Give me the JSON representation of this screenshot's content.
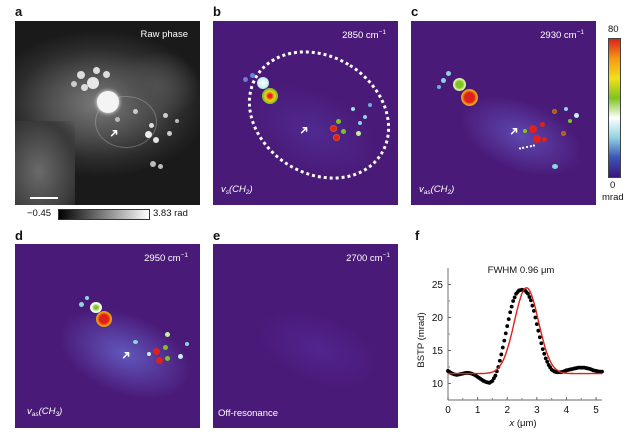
{
  "figure": {
    "panels": [
      {
        "id": "a",
        "label": "a",
        "corner_text": "Raw phase",
        "colorbar": {
          "min_label": "−0.45",
          "max_label": "3.83 rad"
        }
      },
      {
        "id": "b",
        "label": "b",
        "wavenumber": "2850 cm",
        "wavenumber_exp": "−1",
        "mode_prefix": "v",
        "mode_sub": "s",
        "mode_group": "(CH",
        "mode_group_sub": "2",
        "mode_close": ")"
      },
      {
        "id": "c",
        "label": "c",
        "wavenumber": "2930 cm",
        "wavenumber_exp": "−1",
        "mode_prefix": "v",
        "mode_sub": "as",
        "mode_group": "(CH",
        "mode_group_sub": "2",
        "mode_close": ")",
        "colorbar": {
          "max_label": "80",
          "min_label": "0",
          "unit_label": "mrad",
          "colors": [
            "#3a1480",
            "#3b56b8",
            "#8fd3e3",
            "#ffffff",
            "#7fc41f",
            "#f2e01a",
            "#f59a12",
            "#e0201a"
          ]
        }
      },
      {
        "id": "d",
        "label": "d",
        "wavenumber": "2950 cm",
        "wavenumber_exp": "−1",
        "mode_prefix": "v",
        "mode_sub": "as",
        "mode_group": "(CH",
        "mode_group_sub": "3",
        "mode_close": ")"
      },
      {
        "id": "e",
        "label": "e",
        "wavenumber": "2700 cm",
        "wavenumber_exp": "−1",
        "mode_text": "Off-resonance"
      },
      {
        "id": "f",
        "label": "f"
      }
    ],
    "colors": {
      "map_background": "#4a1a78",
      "fit_line": "#d8241c",
      "data_points": "#000000"
    }
  },
  "chart_data": {
    "type": "line",
    "title": "FWHM 0.96  μm",
    "xlabel": "x (μm)",
    "xlabel_var": "x",
    "xlabel_unit": " (μm)",
    "ylabel": "BSTP (mrad)",
    "xlim": [
      0,
      5.2
    ],
    "ylim": [
      7.5,
      27.5
    ],
    "xticks": [
      0,
      1,
      2,
      3,
      4,
      5
    ],
    "yticks": [
      10,
      15,
      20,
      25
    ],
    "grid": false,
    "legend": "none",
    "series": [
      {
        "name": "measured",
        "style": "dots",
        "color": "#000000",
        "x": [
          0.0,
          0.1,
          0.2,
          0.3,
          0.4,
          0.5,
          0.6,
          0.7,
          0.8,
          0.9,
          1.0,
          1.1,
          1.2,
          1.3,
          1.4,
          1.5,
          1.6,
          1.7,
          1.8,
          1.9,
          2.0,
          2.1,
          2.2,
          2.3,
          2.4,
          2.5,
          2.6,
          2.7,
          2.8,
          2.9,
          3.0,
          3.1,
          3.2,
          3.3,
          3.4,
          3.5,
          3.6,
          3.7,
          3.8,
          3.9,
          4.0,
          4.1,
          4.2,
          4.3,
          4.4,
          4.5,
          4.6,
          4.7,
          4.8,
          4.9,
          5.0,
          5.1,
          5.2
        ],
        "y": [
          11.9,
          11.6,
          11.4,
          11.3,
          11.4,
          11.5,
          11.6,
          11.6,
          11.5,
          11.3,
          11.0,
          10.7,
          10.4,
          10.2,
          10.1,
          10.4,
          11.2,
          12.5,
          14.4,
          16.5,
          18.7,
          20.8,
          22.5,
          23.6,
          24.1,
          24.2,
          24.1,
          23.6,
          22.6,
          21.0,
          19.0,
          17.0,
          15.2,
          13.8,
          12.8,
          12.1,
          11.8,
          11.7,
          11.7,
          11.8,
          12.0,
          12.1,
          12.2,
          12.3,
          12.4,
          12.4,
          12.4,
          12.3,
          12.2,
          12.0,
          11.9,
          11.8,
          11.8
        ]
      },
      {
        "name": "gaussian-fit",
        "style": "line",
        "color": "#d8241c",
        "center": 2.65,
        "fwhm": 0.96,
        "baseline": 11.5,
        "amplitude": 13.0
      }
    ]
  }
}
